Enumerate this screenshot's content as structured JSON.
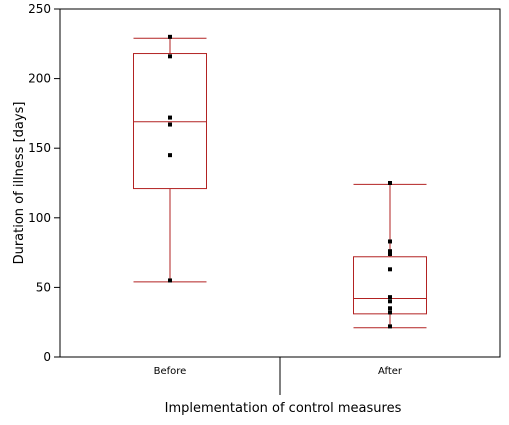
{
  "chart_data": {
    "type": "box",
    "title": "",
    "xlabel": "Implementation of control measures",
    "ylabel": "Duration of illness [days]",
    "ylim": [
      0,
      250
    ],
    "yticks": [
      0,
      50,
      100,
      150,
      200,
      250
    ],
    "grid": false,
    "legend": "none",
    "box_color": "#b22222",
    "point_color": "#000000",
    "categories": [
      "Before",
      "After"
    ],
    "groups": [
      {
        "category": "Before",
        "whisker_low": 54,
        "q1": 121,
        "median": 169,
        "q3": 218,
        "whisker_high": 229,
        "points": [
          55,
          145,
          167,
          172,
          216,
          230
        ]
      },
      {
        "category": "After",
        "whisker_low": 21,
        "q1": 31,
        "median": 42,
        "q3": 72,
        "whisker_high": 124,
        "points": [
          22,
          32,
          35,
          40,
          43,
          63,
          74,
          76,
          83,
          125
        ]
      }
    ]
  }
}
